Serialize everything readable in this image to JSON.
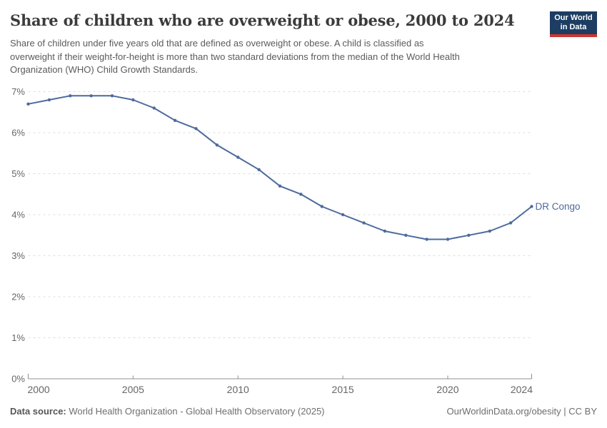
{
  "header": {
    "title": "Share of children who are overweight or obese, 2000 to 2024",
    "subtitle_lines": [
      "Share of children under five years old that are defined as overweight or obese. A child is classified as",
      "overweight if their weight-for-height is more than two standard deviations from the median of the World Health",
      "Organization (WHO) Child Growth Standards."
    ],
    "logo": {
      "line1": "Our World",
      "line2": "in Data",
      "bg": "#1d3d63",
      "accent": "#cf342e"
    }
  },
  "chart_data": {
    "type": "line",
    "title": "Share of children who are overweight or obese, 2000 to 2024",
    "xlabel": "",
    "ylabel": "",
    "x": [
      2000,
      2001,
      2002,
      2003,
      2004,
      2005,
      2006,
      2007,
      2008,
      2009,
      2010,
      2011,
      2012,
      2013,
      2014,
      2015,
      2016,
      2017,
      2018,
      2019,
      2020,
      2021,
      2022,
      2023,
      2024
    ],
    "series": [
      {
        "name": "DR Congo",
        "color": "#4c6a9c",
        "values": [
          6.7,
          6.8,
          6.9,
          6.9,
          6.9,
          6.8,
          6.6,
          6.3,
          6.1,
          5.7,
          5.4,
          5.1,
          4.7,
          4.5,
          4.2,
          4.0,
          3.8,
          3.6,
          3.5,
          3.4,
          3.4,
          3.5,
          3.6,
          3.8,
          4.2
        ]
      }
    ],
    "xlim": [
      2000,
      2024
    ],
    "ylim": [
      0,
      7
    ],
    "xticks": [
      2000,
      2005,
      2010,
      2015,
      2020,
      2024
    ],
    "yticks": [
      0,
      1,
      2,
      3,
      4,
      5,
      6,
      7
    ],
    "y_suffix": "%",
    "grid": true,
    "grid_style": "dashed",
    "legend_position": "end-of-line",
    "colors": {
      "grid": "#dedede",
      "axis": "#8f8f8f",
      "tick_text": "#666666"
    }
  },
  "footer": {
    "datasource_label": "Data source:",
    "datasource_value": " World Health Organization - Global Health Observatory (2025)",
    "rights": "OurWorldinData.org/obesity | CC BY"
  }
}
